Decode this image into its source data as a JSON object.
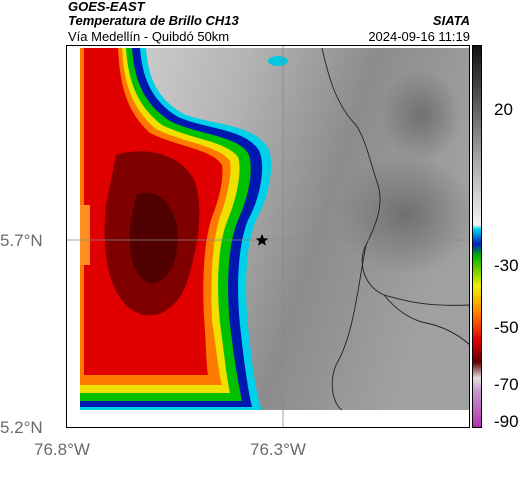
{
  "header": {
    "title_line1": "GOES-EAST",
    "title_line2": "Temperatura de Brillo CH13",
    "subtitle": "Vía Medellín - Quibdó 50km",
    "organization": "SIATA",
    "timestamp": "2024-09-16 11:19"
  },
  "map": {
    "lat_labels": [
      "5.7°N",
      "5.2°N"
    ],
    "lon_labels": [
      "76.8°W",
      "76.3°W"
    ],
    "marker": "star-icon",
    "gridlines": true
  },
  "colorbar": {
    "tick_labels": [
      "20",
      "-30",
      "-50",
      "-70",
      "-90"
    ],
    "colors": {
      "warm_low": "#e8e8e8",
      "warm_high": "#1a1a1a",
      "cyan": "#00d0e8",
      "blue": "#0010a0",
      "green": "#00c000",
      "yellow": "#f0f000",
      "orange": "#ff8000",
      "red": "#e80000",
      "darkred": "#600000",
      "magenta": "#c030c0"
    }
  }
}
